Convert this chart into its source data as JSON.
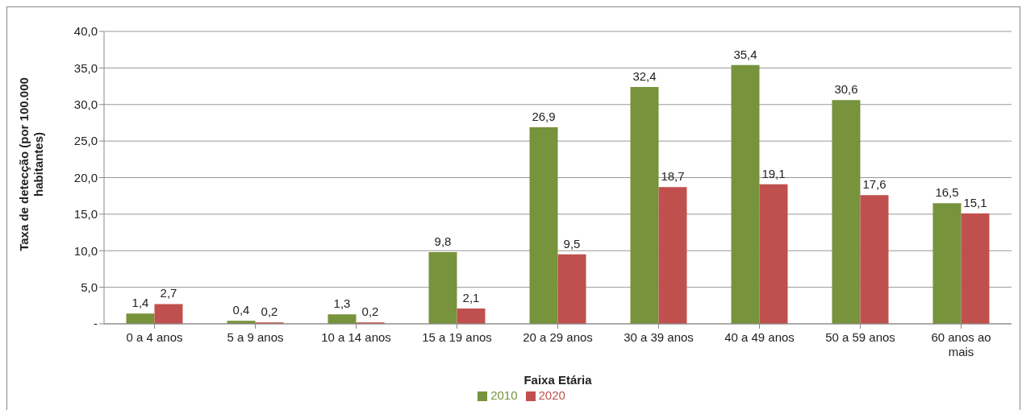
{
  "chart_data": {
    "type": "bar",
    "xlabel": "Faixa Etária",
    "ylabel": "Taxa de detecção (por 100.000 habitantes)",
    "categories": [
      "0 a 4 anos",
      "5 a 9 anos",
      "10 a 14 anos",
      "15 a 19 anos",
      "20 a 29 anos",
      "30 a 39 anos",
      "40 a 49 anos",
      "50 a 59 anos",
      "60 anos ao mais"
    ],
    "series": [
      {
        "name": "2010",
        "color": "#77933c",
        "values": [
          1.4,
          0.4,
          1.3,
          9.8,
          26.9,
          32.4,
          35.4,
          30.6,
          16.5
        ],
        "value_labels": [
          "1,4",
          "0,4",
          "1,3",
          "9,8",
          "26,9",
          "32,4",
          "35,4",
          "30,6",
          "16,5"
        ]
      },
      {
        "name": "2020",
        "color": "#c0504d",
        "values": [
          2.7,
          0.2,
          0.2,
          2.1,
          9.5,
          18.7,
          19.1,
          17.6,
          15.1
        ],
        "value_labels": [
          "2,7",
          "0,2",
          "0,2",
          "2,1",
          "9,5",
          "18,7",
          "19,1",
          "17,6",
          "15,1"
        ]
      }
    ],
    "ylim": [
      0,
      40
    ],
    "yticks": [
      {
        "value": 0,
        "label": "-"
      },
      {
        "value": 5,
        "label": "5,0"
      },
      {
        "value": 10,
        "label": "10,0"
      },
      {
        "value": 15,
        "label": "15,0"
      },
      {
        "value": 20,
        "label": "20,0"
      },
      {
        "value": 25,
        "label": "25,0"
      },
      {
        "value": 30,
        "label": "30,0"
      },
      {
        "value": 35,
        "label": "35,0"
      },
      {
        "value": 40,
        "label": "40,0"
      }
    ],
    "grid": "y",
    "legend": "bottom"
  }
}
